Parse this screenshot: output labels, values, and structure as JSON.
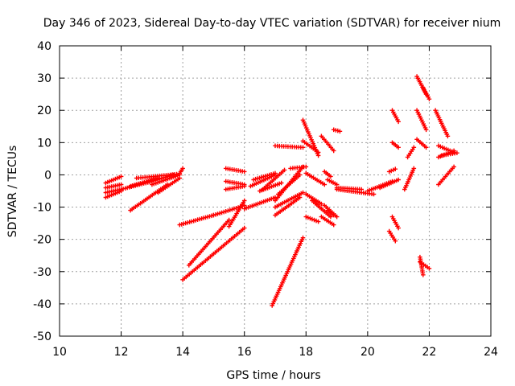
{
  "chart_data": {
    "type": "scatter",
    "title": "Day 346 of 2023, Sidereal Day-to-day VTEC variation (SDTVAR) for receiver nium",
    "xlabel": "GPS time / hours",
    "ylabel": "SDTVAR / TECUs",
    "xlim": [
      10,
      24
    ],
    "ylim": [
      -50,
      40
    ],
    "xticks": [
      10,
      12,
      14,
      16,
      18,
      20,
      22,
      24
    ],
    "yticks": [
      -50,
      -40,
      -30,
      -20,
      -10,
      0,
      10,
      20,
      30,
      40
    ],
    "grid": true,
    "marker": "+",
    "color": "#ff0000",
    "tracks": [
      {
        "x": [
          11.5,
          12.0
        ],
        "y": [
          -2.5,
          -0.5
        ]
      },
      {
        "x": [
          11.5,
          12.0
        ],
        "y": [
          -4.0,
          -3.0
        ]
      },
      {
        "x": [
          11.5,
          12.0
        ],
        "y": [
          -5.5,
          -4.5
        ]
      },
      {
        "x": [
          11.5,
          12.0
        ],
        "y": [
          -7.0,
          -5.0
        ]
      },
      {
        "x": [
          12.0,
          13.0
        ],
        "y": [
          -4.5,
          -2.0
        ]
      },
      {
        "x": [
          12.3,
          13.2
        ],
        "y": [
          -3.5,
          -1.0
        ]
      },
      {
        "x": [
          12.3,
          13.5
        ],
        "y": [
          -11.0,
          -3.0
        ]
      },
      {
        "x": [
          12.5,
          13.8
        ],
        "y": [
          -1.0,
          0.2
        ]
      },
      {
        "x": [
          12.8,
          13.7
        ],
        "y": [
          -2.5,
          0.0
        ]
      },
      {
        "x": [
          13.0,
          13.9
        ],
        "y": [
          -3.0,
          0.0
        ]
      },
      {
        "x": [
          13.2,
          13.9
        ],
        "y": [
          -5.5,
          -1.0
        ]
      },
      {
        "x": [
          13.9,
          14.0
        ],
        "y": [
          0.5,
          2.0
        ]
      },
      {
        "x": [
          13.9,
          15.0
        ],
        "y": [
          -15.5,
          -12.5
        ]
      },
      {
        "x": [
          15.0,
          16.0
        ],
        "y": [
          -12.5,
          -9.5
        ]
      },
      {
        "x": [
          14.0,
          15.0
        ],
        "y": [
          -32.5,
          -24.5
        ]
      },
      {
        "x": [
          15.0,
          16.0
        ],
        "y": [
          -24.5,
          -16.5
        ]
      },
      {
        "x": [
          14.2,
          15.5
        ],
        "y": [
          -28.0,
          -14.0
        ]
      },
      {
        "x": [
          15.4,
          16.0
        ],
        "y": [
          2.0,
          1.0
        ]
      },
      {
        "x": [
          15.4,
          16.0
        ],
        "y": [
          -2.0,
          -3.0
        ]
      },
      {
        "x": [
          15.4,
          16.0
        ],
        "y": [
          -4.5,
          -3.5
        ]
      },
      {
        "x": [
          16.2,
          17.0
        ],
        "y": [
          -3.5,
          0.0
        ]
      },
      {
        "x": [
          16.3,
          17.0
        ],
        "y": [
          -1.5,
          0.5
        ]
      },
      {
        "x": [
          16.5,
          17.2
        ],
        "y": [
          -5.0,
          -2.5
        ]
      },
      {
        "x": [
          16.6,
          17.3
        ],
        "y": [
          -4.5,
          1.5
        ]
      },
      {
        "x": [
          15.5,
          16.0
        ],
        "y": [
          -16.0,
          -8.0
        ]
      },
      {
        "x": [
          16.0,
          17.0
        ],
        "y": [
          -10.5,
          -7.0
        ]
      },
      {
        "x": [
          17.0,
          17.9
        ],
        "y": [
          9.0,
          8.5
        ]
      },
      {
        "x": [
          16.9,
          17.9
        ],
        "y": [
          -40.5,
          -19.5
        ]
      },
      {
        "x": [
          17.0,
          17.9
        ],
        "y": [
          -8.0,
          2.5
        ]
      },
      {
        "x": [
          17.0,
          17.9
        ],
        "y": [
          -10.0,
          -5.5
        ]
      },
      {
        "x": [
          17.0,
          17.8
        ],
        "y": [
          -12.5,
          -7.0
        ]
      },
      {
        "x": [
          17.1,
          17.8
        ],
        "y": [
          -6.0,
          0.0
        ]
      },
      {
        "x": [
          17.5,
          18.0
        ],
        "y": [
          2.0,
          2.5
        ]
      },
      {
        "x": [
          17.9,
          18.4
        ],
        "y": [
          17.0,
          6.0
        ]
      },
      {
        "x": [
          17.9,
          18.4
        ],
        "y": [
          10.5,
          7.0
        ]
      },
      {
        "x": [
          18.0,
          18.5
        ],
        "y": [
          -6.0,
          -9.0
        ]
      },
      {
        "x": [
          18.0,
          18.4
        ],
        "y": [
          -13.0,
          -14.5
        ]
      },
      {
        "x": [
          18.0,
          18.6
        ],
        "y": [
          0.5,
          -3.0
        ]
      },
      {
        "x": [
          18.2,
          18.8
        ],
        "y": [
          -8.0,
          -13.0
        ]
      },
      {
        "x": [
          18.5,
          18.9
        ],
        "y": [
          12.0,
          7.5
        ]
      },
      {
        "x": [
          18.5,
          18.9
        ],
        "y": [
          -13.0,
          -15.5
        ]
      },
      {
        "x": [
          18.6,
          19.0
        ],
        "y": [
          -9.5,
          -13.0
        ]
      },
      {
        "x": [
          18.6,
          18.8
        ],
        "y": [
          1.0,
          -0.5
        ]
      },
      {
        "x": [
          18.7,
          19.0
        ],
        "y": [
          -1.5,
          -3.0
        ]
      },
      {
        "x": [
          18.7,
          18.9
        ],
        "y": [
          -11.0,
          -12.5
        ]
      },
      {
        "x": [
          18.9,
          19.1
        ],
        "y": [
          14.0,
          13.5
        ]
      },
      {
        "x": [
          19.0,
          20.2
        ],
        "y": [
          -4.5,
          -6.0
        ]
      },
      {
        "x": [
          19.0,
          19.8
        ],
        "y": [
          -4.0,
          -4.5
        ]
      },
      {
        "x": [
          20.0,
          20.8
        ],
        "y": [
          -5.0,
          -2.0
        ]
      },
      {
        "x": [
          20.4,
          21.0
        ],
        "y": [
          -4.0,
          -1.5
        ]
      },
      {
        "x": [
          20.7,
          20.9
        ],
        "y": [
          1.0,
          1.8
        ]
      },
      {
        "x": [
          20.8,
          21.0
        ],
        "y": [
          20.0,
          16.5
        ]
      },
      {
        "x": [
          20.8,
          21.0
        ],
        "y": [
          10.0,
          8.5
        ]
      },
      {
        "x": [
          20.8,
          21.0
        ],
        "y": [
          -13.0,
          -16.5
        ]
      },
      {
        "x": [
          20.7,
          20.9
        ],
        "y": [
          -17.5,
          -20.5
        ]
      },
      {
        "x": [
          21.2,
          21.5
        ],
        "y": [
          -4.5,
          2.0
        ]
      },
      {
        "x": [
          21.3,
          21.5
        ],
        "y": [
          5.5,
          8.5
        ]
      },
      {
        "x": [
          21.6,
          21.9
        ],
        "y": [
          30.5,
          25.0
        ]
      },
      {
        "x": [
          21.8,
          22.0
        ],
        "y": [
          27.0,
          23.5
        ]
      },
      {
        "x": [
          21.6,
          21.9
        ],
        "y": [
          20.0,
          14.0
        ]
      },
      {
        "x": [
          21.6,
          21.9
        ],
        "y": [
          11.0,
          8.5
        ]
      },
      {
        "x": [
          21.7,
          22.0
        ],
        "y": [
          -27.0,
          -29.0
        ]
      },
      {
        "x": [
          21.7,
          21.8
        ],
        "y": [
          -25.5,
          -31.0
        ]
      },
      {
        "x": [
          22.2,
          22.6
        ],
        "y": [
          20.0,
          12.0
        ]
      },
      {
        "x": [
          22.3,
          22.8
        ],
        "y": [
          9.0,
          7.0
        ]
      },
      {
        "x": [
          22.3,
          22.8
        ],
        "y": [
          5.5,
          7.5
        ]
      },
      {
        "x": [
          22.3,
          22.8
        ],
        "y": [
          -3.0,
          2.5
        ]
      },
      {
        "x": [
          22.4,
          22.9
        ],
        "y": [
          6.0,
          6.8
        ]
      }
    ]
  }
}
